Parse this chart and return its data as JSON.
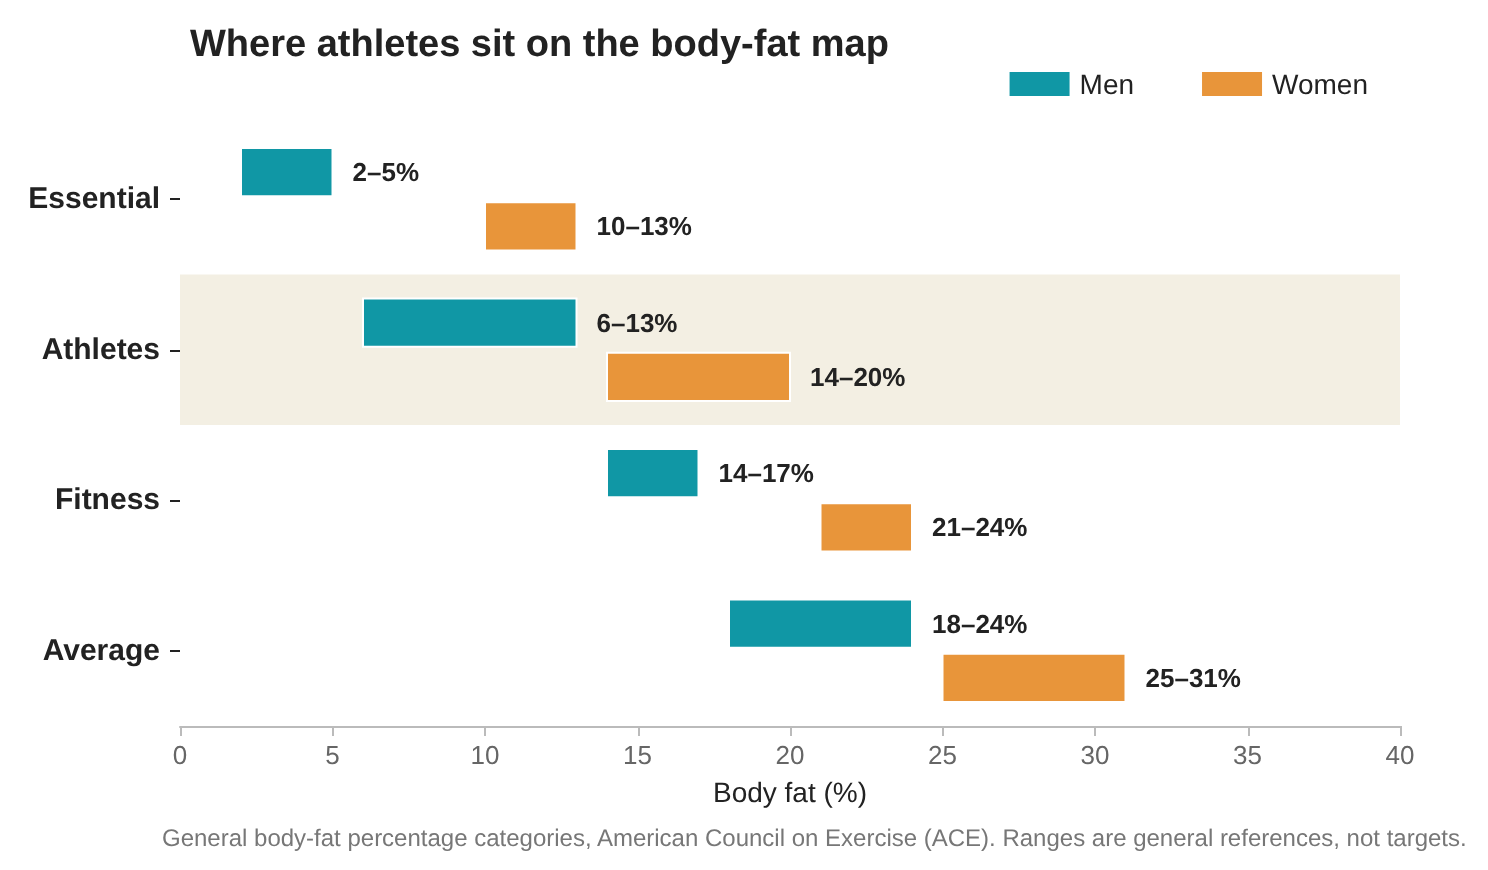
{
  "chart_data": {
    "type": "bar",
    "orientation": "horizontal",
    "title": "Where athletes sit on the body-fat map",
    "xlabel": "Body fat (%)",
    "categories": [
      "Essential",
      "Athletes",
      "Fitness",
      "Average"
    ],
    "series": [
      {
        "name": "Men",
        "color": "#1097a5",
        "base": [
          2,
          6,
          14,
          18
        ],
        "values": [
          3,
          7,
          3,
          6
        ]
      },
      {
        "name": "Women",
        "color": "#e8953a",
        "base": [
          10,
          14,
          21,
          25
        ],
        "values": [
          3,
          6,
          3,
          6
        ]
      }
    ],
    "bands": [
      {
        "axis": "y",
        "from": "Athletes",
        "to": "Athletes",
        "color": "#f3efe3"
      }
    ],
    "xlim": [
      0,
      40
    ],
    "xticks": [
      0,
      5,
      10,
      15,
      20,
      25,
      30,
      35,
      40
    ],
    "grid": false,
    "legend": "top right",
    "annotations": [
      {
        "text": "2–5%",
        "x": 5,
        "y": "Essential"
      },
      {
        "text": "10–13%",
        "x": 13,
        "y": "Essential"
      },
      {
        "text": "6–13%",
        "x": 13,
        "y": "Athletes"
      },
      {
        "text": "14–20%",
        "x": 20,
        "y": "Athletes"
      },
      {
        "text": "14–17%",
        "x": 17,
        "y": "Fitness"
      },
      {
        "text": "21–24%",
        "x": 24,
        "y": "Fitness"
      },
      {
        "text": "18–24%",
        "x": 24,
        "y": "Average"
      },
      {
        "text": "25–31%",
        "x": 31,
        "y": "Average"
      },
      "General body-fat percentage categories, American Council on Exercise (ACE). Ranges are general references, not targets."
    ]
  }
}
